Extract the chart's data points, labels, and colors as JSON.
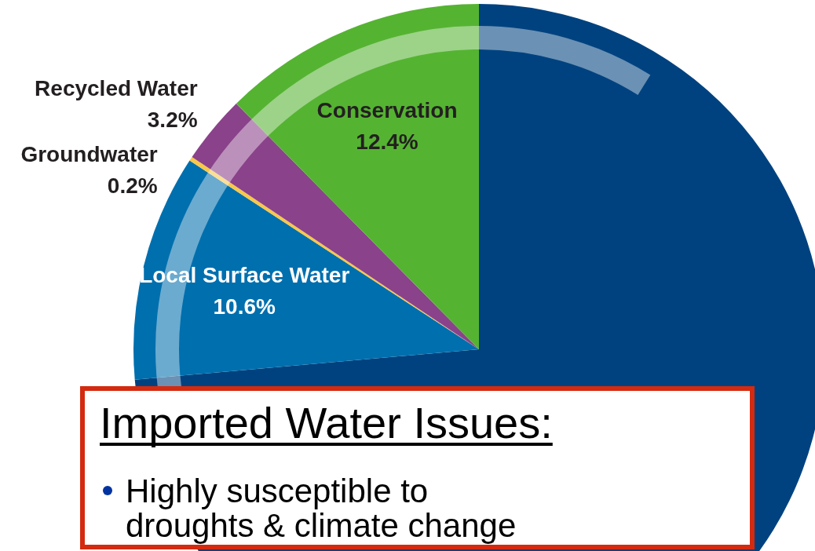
{
  "chart_data": {
    "type": "pie",
    "categories": [
      null,
      "Local Surface Water",
      "Groundwater",
      "Recycled Water",
      "Conservation"
    ],
    "values": [
      73.6,
      10.6,
      0.2,
      3.2,
      12.4
    ],
    "colors": [
      "#00427f",
      "#006fae",
      "#f8c84a",
      "#8a428a",
      "#55b332"
    ],
    "value_labels": [
      null,
      "10.6%",
      "0.2%",
      "3.2%",
      "12.4%"
    ],
    "annotations": [
      "Imported Water Issues:",
      "Highly susceptible to droughts & climate change"
    ]
  }
}
